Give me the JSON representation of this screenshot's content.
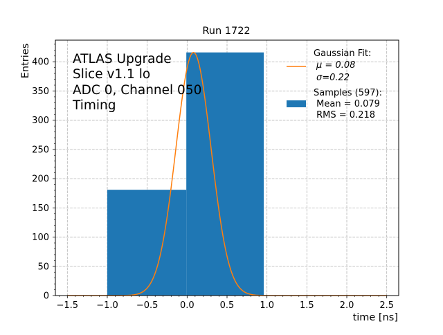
{
  "chart_data": {
    "type": "bar",
    "title": "Run 1722",
    "xlabel": "time [ns]",
    "ylabel": "Entries",
    "xlim": [
      -1.65,
      2.65
    ],
    "ylim": [
      0,
      437
    ],
    "xticks": [
      -1.5,
      -1.0,
      -0.5,
      0.0,
      0.5,
      1.0,
      1.5,
      2.0,
      2.5
    ],
    "xtick_labels": [
      "−1.5",
      "−1.0",
      "−0.5",
      "0.0",
      "0.5",
      "1.0",
      "1.5",
      "2.0",
      "2.5"
    ],
    "yticks": [
      0,
      50,
      100,
      150,
      200,
      250,
      300,
      350,
      400
    ],
    "ytick_labels": [
      "0",
      "50",
      "100",
      "150",
      "200",
      "250",
      "300",
      "350",
      "400"
    ],
    "grid": true,
    "histogram": {
      "name": "Samples (597):",
      "color": "#1f77b4",
      "bins": [
        {
          "x0": -1.0,
          "x1": -0.01,
          "count": 181
        },
        {
          "x0": -0.01,
          "x1": 0.96,
          "count": 416
        }
      ]
    },
    "fit": {
      "name": "Gaussian Fit:",
      "color": "#ff7f0e",
      "mu": 0.08,
      "sigma": 0.22,
      "amplitude": 416,
      "x_range": [
        -1.5,
        2.5
      ]
    },
    "annotation_lines": [
      "ATLAS Upgrade",
      "Slice v1.1 lo",
      "ADC 0, Channel 050",
      "Timing"
    ],
    "legend": {
      "placement": "top-right",
      "fit_lines": [
        "Gaussian Fit:",
        "$\\mu$ = 0.08",
        "$\\sigma$=0.22"
      ],
      "fit_lines_display": [
        "Gaussian Fit:",
        "μ = 0.08",
        "σ=0.22"
      ],
      "hist_lines": [
        "Samples (597):",
        " Mean = 0.079",
        " RMS = 0.218"
      ]
    }
  }
}
